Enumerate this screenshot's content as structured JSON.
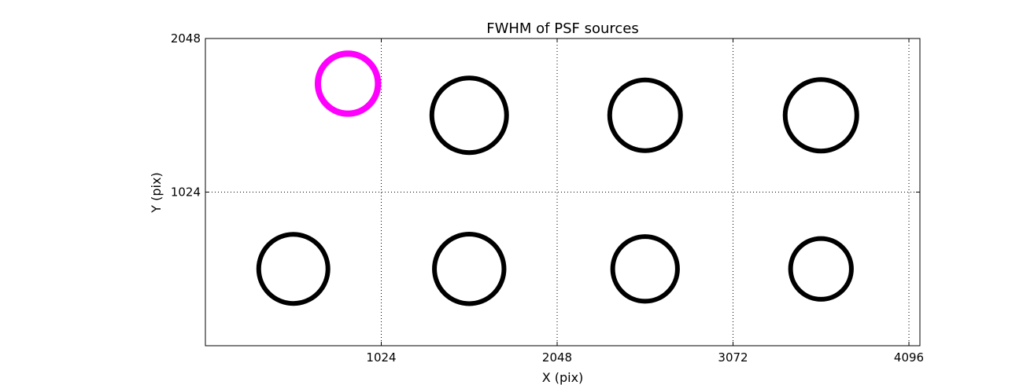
{
  "chart_data": {
    "type": "scatter",
    "title": "FWHM of PSF sources",
    "xlabel": "X (pix)",
    "ylabel": "Y (pix)",
    "xlim": [
      0,
      4160
    ],
    "ylim": [
      0,
      2048
    ],
    "xticks": [
      1024,
      2048,
      3072,
      4096
    ],
    "xtick_labels": [
      "1024",
      "2048",
      "3072",
      "4096"
    ],
    "yticks": [
      1024,
      2048
    ],
    "ytick_labels": [
      "1024",
      "2048"
    ],
    "grid": true,
    "grid_style": "dotted",
    "marker": "circle",
    "point_size_units": "pix",
    "highlight_color": "#ff00ff",
    "default_color": "#000000",
    "points": [
      {
        "x": 512,
        "y": 512,
        "size": 403,
        "highlight": false
      },
      {
        "x": 1536,
        "y": 512,
        "size": 405,
        "highlight": false
      },
      {
        "x": 2560,
        "y": 512,
        "size": 377,
        "highlight": false
      },
      {
        "x": 3584,
        "y": 512,
        "size": 354,
        "highlight": false
      },
      {
        "x": 1536,
        "y": 1536,
        "size": 435,
        "highlight": false
      },
      {
        "x": 2560,
        "y": 1536,
        "size": 412,
        "highlight": false
      },
      {
        "x": 3584,
        "y": 1536,
        "size": 417,
        "highlight": false
      },
      {
        "x": 830,
        "y": 1747,
        "size": 350,
        "highlight": true
      }
    ]
  }
}
